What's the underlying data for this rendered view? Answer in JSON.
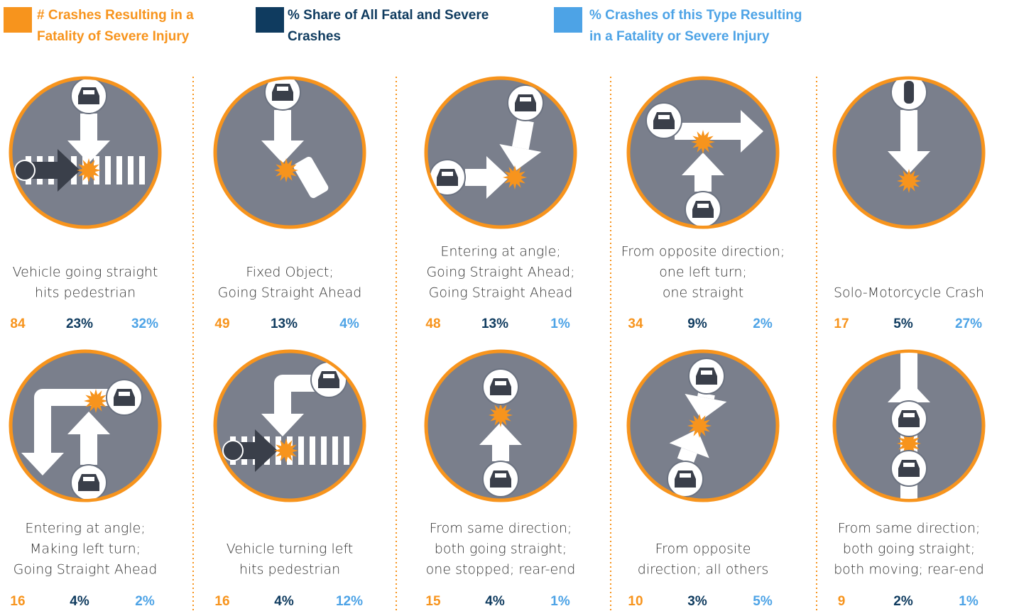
{
  "legend": [
    {
      "lines": [
        "# Crashes Resulting in a",
        "Fatality of Severe Injury"
      ],
      "color": "#f7941d"
    },
    {
      "lines": [
        "% Share of All Fatal and Severe",
        "Crashes"
      ],
      "color": "#0f3b5f"
    },
    {
      "lines": [
        "% Crashes of this Type Resulting",
        "in a Fatality or Severe Injury"
      ],
      "color": "#4da3e6"
    }
  ],
  "items": [
    {
      "lines": [
        "Vehicle going straight",
        "hits pedestrian"
      ],
      "count": "84",
      "share": "23%",
      "rate": "32%"
    },
    {
      "lines": [
        "Fixed Object;",
        "Going Straight Ahead"
      ],
      "count": "49",
      "share": "13%",
      "rate": "4%"
    },
    {
      "lines": [
        "Entering at angle;",
        "Going Straight Ahead;",
        "Going Straight Ahead"
      ],
      "count": "48",
      "share": "13%",
      "rate": "1%"
    },
    {
      "lines": [
        "From opposite direction;",
        "one left turn;",
        "one straight"
      ],
      "count": "34",
      "share": "9%",
      "rate": "2%"
    },
    {
      "lines": [
        "Solo-Motorcycle Crash"
      ],
      "count": "17",
      "share": "5%",
      "rate": "27%"
    },
    {
      "lines": [
        "Entering at angle;",
        "Making left turn;",
        "Going Straight Ahead"
      ],
      "count": "16",
      "share": "4%",
      "rate": "2%"
    },
    {
      "lines": [
        "Vehicle turning left",
        "hits pedestrian"
      ],
      "count": "16",
      "share": "4%",
      "rate": "12%"
    },
    {
      "lines": [
        "From same direction;",
        "both going straight;",
        "one stopped; rear-end"
      ],
      "count": "15",
      "share": "4%",
      "rate": "1%"
    },
    {
      "lines": [
        "From opposite",
        "direction; all others"
      ],
      "count": "10",
      "share": "3%",
      "rate": "5%"
    },
    {
      "lines": [
        "From same direction;",
        "both going straight;",
        "both moving; rear-end"
      ],
      "count": "9",
      "share": "2%",
      "rate": "1%"
    }
  ]
}
